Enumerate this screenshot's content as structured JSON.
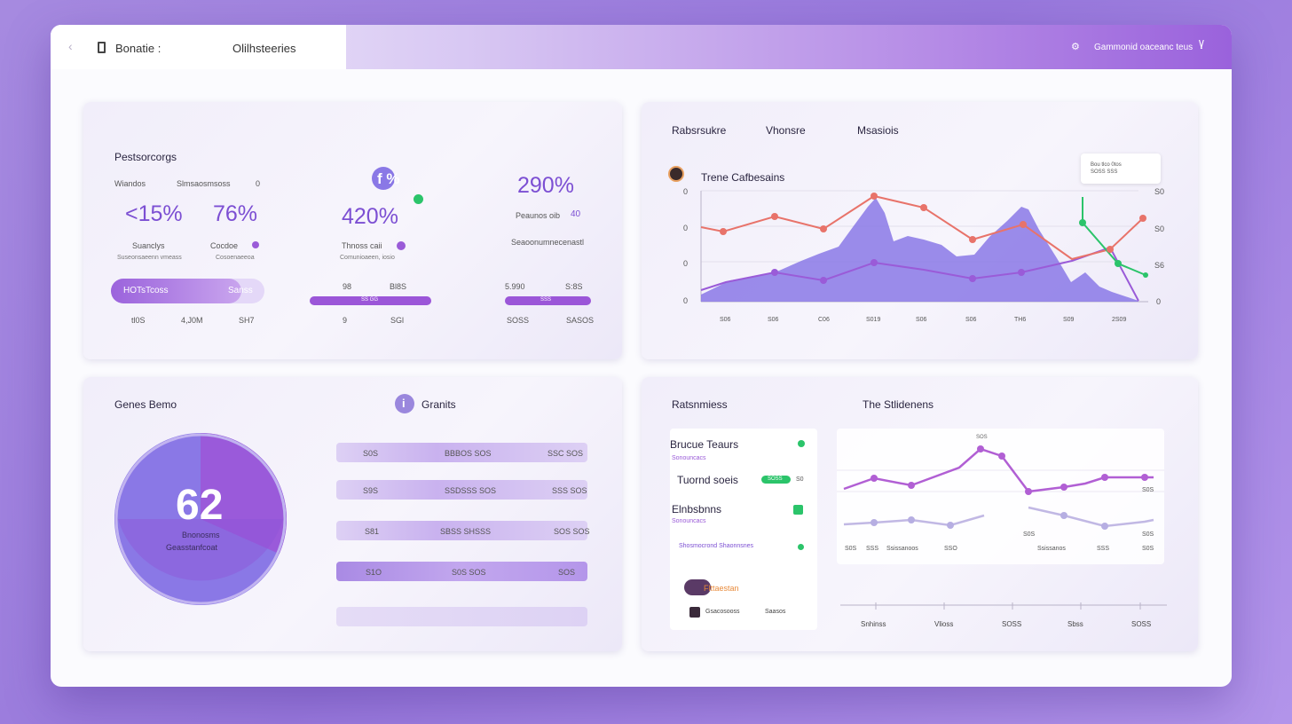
{
  "topbar": {
    "app_title": "Bonatie :",
    "tab_title": "Olilhsteeries",
    "right_label": "Gammonid oaceanc teus"
  },
  "stats": {
    "title": "Pestsorcorgs",
    "col1": {
      "header_a": "Wiandos",
      "header_b": "Slmsaosmsoss",
      "header_c": "0",
      "value_a": "<15%",
      "value_b": "76%",
      "label_a": "Suanclys",
      "label_b": "Cocdoe",
      "sub_a": "Suseonsaeenn vmeass",
      "sub_b": "Cosoenaeeoa",
      "bar_label": "HOTsTcoss",
      "bar_right": "Sanss",
      "foot_a": "tl0S",
      "foot_b": "4,J0M",
      "foot_c": "SH7",
      "progress": 0.85
    },
    "col2": {
      "icon_text": "f %",
      "value": "420%",
      "label": "Thnoss caii",
      "sub": "Comunioaeen, iosio",
      "bar_left": "98",
      "bar_right": "Bl8S",
      "bar_inner": "SS GG",
      "foot_a": "9",
      "foot_b": "SGl",
      "progress": 1.0
    },
    "col3": {
      "value": "290%",
      "label": "Peaunos  oib",
      "badge": "40",
      "sub": "Seaoonumnecenastl",
      "bar_left": "5.990",
      "bar_right": "S:8S",
      "bar_inner": "SSS",
      "foot_a": "SOSS",
      "foot_b": "SASOS",
      "progress": 1.0
    }
  },
  "trend": {
    "tab_a": "Rabsrsukre",
    "tab_b": "Vhonsre",
    "tab_c": "Msasiois",
    "title": "Trene Cafbesains",
    "tooltip_a": "Bou tlco 0tos",
    "tooltip_b": "SOSS SSS",
    "y_left": [
      "0",
      "0",
      "0",
      "0"
    ],
    "y_right": [
      "S0",
      "S0",
      "S6",
      "0"
    ],
    "x_labels": [
      "S06",
      "S06",
      "C06",
      "S019",
      "S06",
      "S06",
      "TH6",
      "S09",
      "2S09"
    ]
  },
  "gauge": {
    "title": "Genes Bemo",
    "value": "62",
    "label_a": "Bnonosms",
    "label_b": "Geasstanfcoat",
    "fill": 0.62
  },
  "grants": {
    "title": "Granits",
    "rows": [
      {
        "left": "S0S",
        "mid": "BBBOS SOS",
        "right": "SSC SOS"
      },
      {
        "left": "S9S",
        "mid": "SSDSSS SOS",
        "right": "SSS SOS"
      },
      {
        "left": "S81",
        "mid": "SBSS SHSSS",
        "right": "SOS SOS"
      },
      {
        "left": "S1O",
        "mid": "S0S SOS",
        "right": "SOS"
      },
      {
        "left": "",
        "mid": "",
        "right": ""
      }
    ]
  },
  "reports": {
    "title": "Ratsnmiess",
    "list_title": "Brucue Teaurs",
    "list_sub": "Sonouncacs",
    "item_a": "Tuornd soeis",
    "item_a_badge": "SOSS",
    "item_a_extra": "S0",
    "item_b": "Elnbsbnns",
    "item_b_sub": "Sonouncacs",
    "item_c": "Shosmocrond Shaonnsnes",
    "item_d": "Flttaestan",
    "item_e": "Gsacosooss",
    "item_e_right": "Saasos"
  },
  "students": {
    "title": "The Stlidenens",
    "peak_label": "SOS",
    "left_labels": [
      "S0S",
      "SSS",
      "Ssissanoos",
      "SSO"
    ],
    "right_labels": [
      "S0S",
      "Ssissanos",
      "SSS"
    ],
    "side_labels": [
      "S0S",
      "S0S",
      "S0S"
    ],
    "x_labels": [
      "Snhinss",
      "Vlioss",
      "SOSS",
      "Sbss",
      "SOSS"
    ]
  },
  "colors": {
    "accent": "#7c4fd3",
    "red_line": "#e8736a",
    "purple_line": "#9a5bd8",
    "area": "#8a78e6",
    "green": "#2bc46a"
  }
}
